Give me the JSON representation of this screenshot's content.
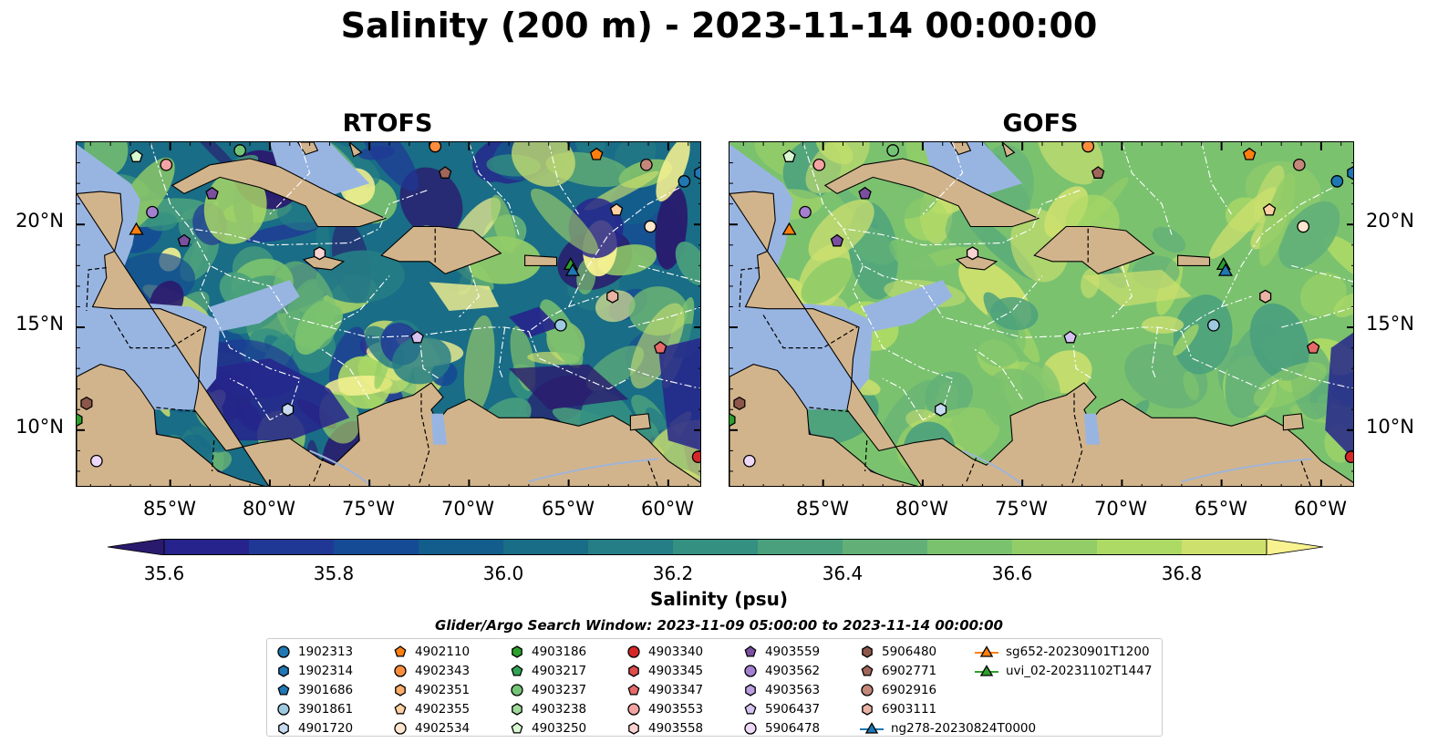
{
  "title": "Salinity (200 m) - 2023-11-14 00:00:00",
  "panels": [
    {
      "title": "RTOFS"
    },
    {
      "title": "GOFS"
    }
  ],
  "map_extent": {
    "lon_min": -89.7,
    "lon_max": -58.3,
    "lat_min": 7.2,
    "lat_max": 24.0
  },
  "lon_ticks": [
    "85°W",
    "80°W",
    "75°W",
    "70°W",
    "65°W",
    "60°W"
  ],
  "lat_ticks": [
    "20°N",
    "15°N",
    "10°N"
  ],
  "colorbar": {
    "label": "Salinity (psu)",
    "range": [
      35.55,
      36.95
    ],
    "ticks": [
      "35.6",
      "35.8",
      "36.0",
      "36.2",
      "36.4",
      "36.6",
      "36.8"
    ],
    "colors": [
      "#2a1a6e",
      "#26248c",
      "#1f3896",
      "#154b94",
      "#135d8c",
      "#196d86",
      "#257d85",
      "#349081",
      "#4aa07d",
      "#62b078",
      "#7bc26f",
      "#93cd68",
      "#adda65",
      "#cde06e",
      "#f8f290"
    ],
    "extend": "both"
  },
  "search_window": "Glider/Argo Search Window: 2023-11-09 05:00:00 to 2023-11-14 00:00:00",
  "legend": [
    {
      "label": "1902313",
      "marker": "circle",
      "color": "#1f77b4"
    },
    {
      "label": "1902314",
      "marker": "hexagon",
      "color": "#1f77b4"
    },
    {
      "label": "3901686",
      "marker": "pentagon",
      "color": "#1f77b4"
    },
    {
      "label": "3901861",
      "marker": "circle",
      "color": "#9ecae1"
    },
    {
      "label": "4901720",
      "marker": "hexagon",
      "color": "#c6dbef"
    },
    {
      "label": "4902110",
      "marker": "pentagon",
      "color": "#ff7f0e"
    },
    {
      "label": "4902343",
      "marker": "circle",
      "color": "#fd8d3c"
    },
    {
      "label": "4902351",
      "marker": "hexagon",
      "color": "#fdae6b"
    },
    {
      "label": "4902355",
      "marker": "pentagon",
      "color": "#fdd0a2"
    },
    {
      "label": "4902534",
      "marker": "circle",
      "color": "#fee6ce"
    },
    {
      "label": "4903186",
      "marker": "hexagon",
      "color": "#2ca02c"
    },
    {
      "label": "4903217",
      "marker": "pentagon",
      "color": "#31a354"
    },
    {
      "label": "4903237",
      "marker": "circle",
      "color": "#74c476"
    },
    {
      "label": "4903238",
      "marker": "hexagon",
      "color": "#a1d99b"
    },
    {
      "label": "4903250",
      "marker": "pentagon",
      "color": "#d9f7d0"
    },
    {
      "label": "4903340",
      "marker": "circle",
      "color": "#d62728"
    },
    {
      "label": "4903345",
      "marker": "hexagon",
      "color": "#de4c4c"
    },
    {
      "label": "4903347",
      "marker": "pentagon",
      "color": "#e66a6a"
    },
    {
      "label": "4903553",
      "marker": "circle",
      "color": "#f4a3a3"
    },
    {
      "label": "4903558",
      "marker": "hexagon",
      "color": "#fbd2d2"
    },
    {
      "label": "4903559",
      "marker": "pentagon",
      "color": "#7b4fa0"
    },
    {
      "label": "4903562",
      "marker": "circle",
      "color": "#a57fd0"
    },
    {
      "label": "4903563",
      "marker": "hexagon",
      "color": "#bc9ee0"
    },
    {
      "label": "5906437",
      "marker": "pentagon",
      "color": "#d6c2f0"
    },
    {
      "label": "5906478",
      "marker": "circle",
      "color": "#eed8f8"
    },
    {
      "label": "5906480",
      "marker": "hexagon",
      "color": "#8c564b"
    },
    {
      "label": "6902771",
      "marker": "pentagon",
      "color": "#a0665a"
    },
    {
      "label": "6902916",
      "marker": "circle",
      "color": "#c4877a"
    },
    {
      "label": "6903111",
      "marker": "hexagon",
      "color": "#e9b4a4"
    },
    {
      "label": "ng278-20230824T0000",
      "marker": "triangle-line",
      "color": "#1f77b4"
    },
    {
      "label": "sg652-20230901T1200",
      "marker": "triangle-line",
      "color": "#ff7f0e"
    },
    {
      "label": "uvi_02-20231102T1447",
      "marker": "triangle-line",
      "color": "#2ca02c"
    }
  ],
  "floats": [
    {
      "lon": -86.7,
      "lat": 23.3,
      "marker": "pentagon",
      "color": "#d9f7d0"
    },
    {
      "lon": -85.2,
      "lat": 22.9,
      "marker": "circle",
      "color": "#f4a3a3"
    },
    {
      "lon": -81.5,
      "lat": 23.6,
      "marker": "circle",
      "color": "#74c476"
    },
    {
      "lon": -82.9,
      "lat": 21.5,
      "marker": "pentagon",
      "color": "#7b4fa0"
    },
    {
      "lon": -85.9,
      "lat": 20.6,
      "marker": "circle",
      "color": "#a57fd0"
    },
    {
      "lon": -86.7,
      "lat": 19.7,
      "marker": "triangle",
      "color": "#ff7f0e"
    },
    {
      "lon": -84.3,
      "lat": 19.2,
      "marker": "pentagon",
      "color": "#7b4fa0"
    },
    {
      "lon": -77.5,
      "lat": 18.6,
      "marker": "hexagon",
      "color": "#fbd2d2"
    },
    {
      "lon": -71.7,
      "lat": 23.8,
      "marker": "circle",
      "color": "#fd8d3c"
    },
    {
      "lon": -71.2,
      "lat": 22.5,
      "marker": "pentagon",
      "color": "#a0665a"
    },
    {
      "lon": -63.6,
      "lat": 23.4,
      "marker": "pentagon",
      "color": "#ff7f0e"
    },
    {
      "lon": -61.1,
      "lat": 22.9,
      "marker": "circle",
      "color": "#c4877a"
    },
    {
      "lon": -62.6,
      "lat": 20.7,
      "marker": "pentagon",
      "color": "#fdd0a2"
    },
    {
      "lon": -60.9,
      "lat": 19.9,
      "marker": "circle",
      "color": "#fee6ce"
    },
    {
      "lon": -59.2,
      "lat": 22.1,
      "marker": "circle",
      "color": "#1f77b4"
    },
    {
      "lon": -58.4,
      "lat": 22.5,
      "marker": "hexagon",
      "color": "#1f77b4"
    },
    {
      "lon": -64.9,
      "lat": 18.0,
      "marker": "triangle",
      "color": "#2ca02c"
    },
    {
      "lon": -64.8,
      "lat": 17.7,
      "marker": "triangle",
      "color": "#1f77b4"
    },
    {
      "lon": -62.8,
      "lat": 16.5,
      "marker": "hexagon",
      "color": "#e9b4a4"
    },
    {
      "lon": -65.4,
      "lat": 15.1,
      "marker": "circle",
      "color": "#9ecae1"
    },
    {
      "lon": -72.6,
      "lat": 14.5,
      "marker": "pentagon",
      "color": "#d6c2f0"
    },
    {
      "lon": -60.4,
      "lat": 14.0,
      "marker": "pentagon",
      "color": "#e66a6a"
    },
    {
      "lon": -79.1,
      "lat": 11.0,
      "marker": "hexagon",
      "color": "#c6dbef"
    },
    {
      "lon": -89.2,
      "lat": 11.3,
      "marker": "hexagon",
      "color": "#8c564b"
    },
    {
      "lon": -89.7,
      "lat": 10.5,
      "marker": "hexagon",
      "color": "#2ca02c"
    },
    {
      "lon": -88.7,
      "lat": 8.5,
      "marker": "circle",
      "color": "#eed8f8"
    },
    {
      "lon": -58.5,
      "lat": 8.7,
      "marker": "circle",
      "color": "#d62728"
    }
  ]
}
